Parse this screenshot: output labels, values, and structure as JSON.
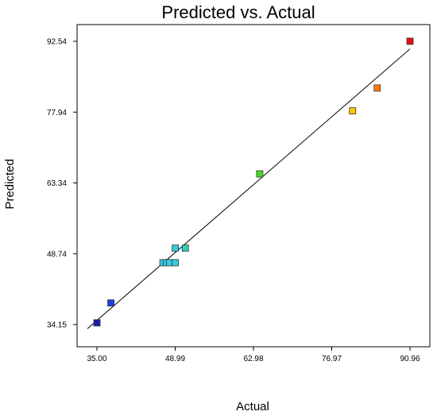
{
  "chart_data": {
    "type": "scatter",
    "title": "Predicted vs. Actual",
    "xlabel": "Actual",
    "ylabel": "Predicted",
    "xlim": [
      35.0,
      90.96
    ],
    "ylim": [
      34.15,
      92.54
    ],
    "xticks": [
      "35.00",
      "48.99",
      "62.98",
      "76.97",
      "90.96"
    ],
    "yticks": [
      "34.15",
      "48.74",
      "63.34",
      "77.94",
      "92.54"
    ],
    "reference_line": {
      "x": [
        33.3,
        90.96
      ],
      "y": [
        33.3,
        90.96
      ]
    },
    "points": [
      {
        "x": 35.0,
        "y": 34.5,
        "color": "#1a1ab0"
      },
      {
        "x": 37.5,
        "y": 38.6,
        "color": "#1e3ee0"
      },
      {
        "x": 46.8,
        "y": 46.9,
        "color": "#35cbe0"
      },
      {
        "x": 47.4,
        "y": 46.9,
        "color": "#35cbe0"
      },
      {
        "x": 48.0,
        "y": 46.9,
        "color": "#35cbe0"
      },
      {
        "x": 49.0,
        "y": 46.9,
        "color": "#35cbe0"
      },
      {
        "x": 49.0,
        "y": 49.9,
        "color": "#35cbe0"
      },
      {
        "x": 50.8,
        "y": 49.9,
        "color": "#28d4b8"
      },
      {
        "x": 64.1,
        "y": 65.2,
        "color": "#44dd22"
      },
      {
        "x": 80.7,
        "y": 78.2,
        "color": "#ffc800"
      },
      {
        "x": 85.1,
        "y": 82.9,
        "color": "#ff7a1a"
      },
      {
        "x": 90.96,
        "y": 92.54,
        "color": "#e81010"
      }
    ],
    "grid": false,
    "legend": "none"
  }
}
